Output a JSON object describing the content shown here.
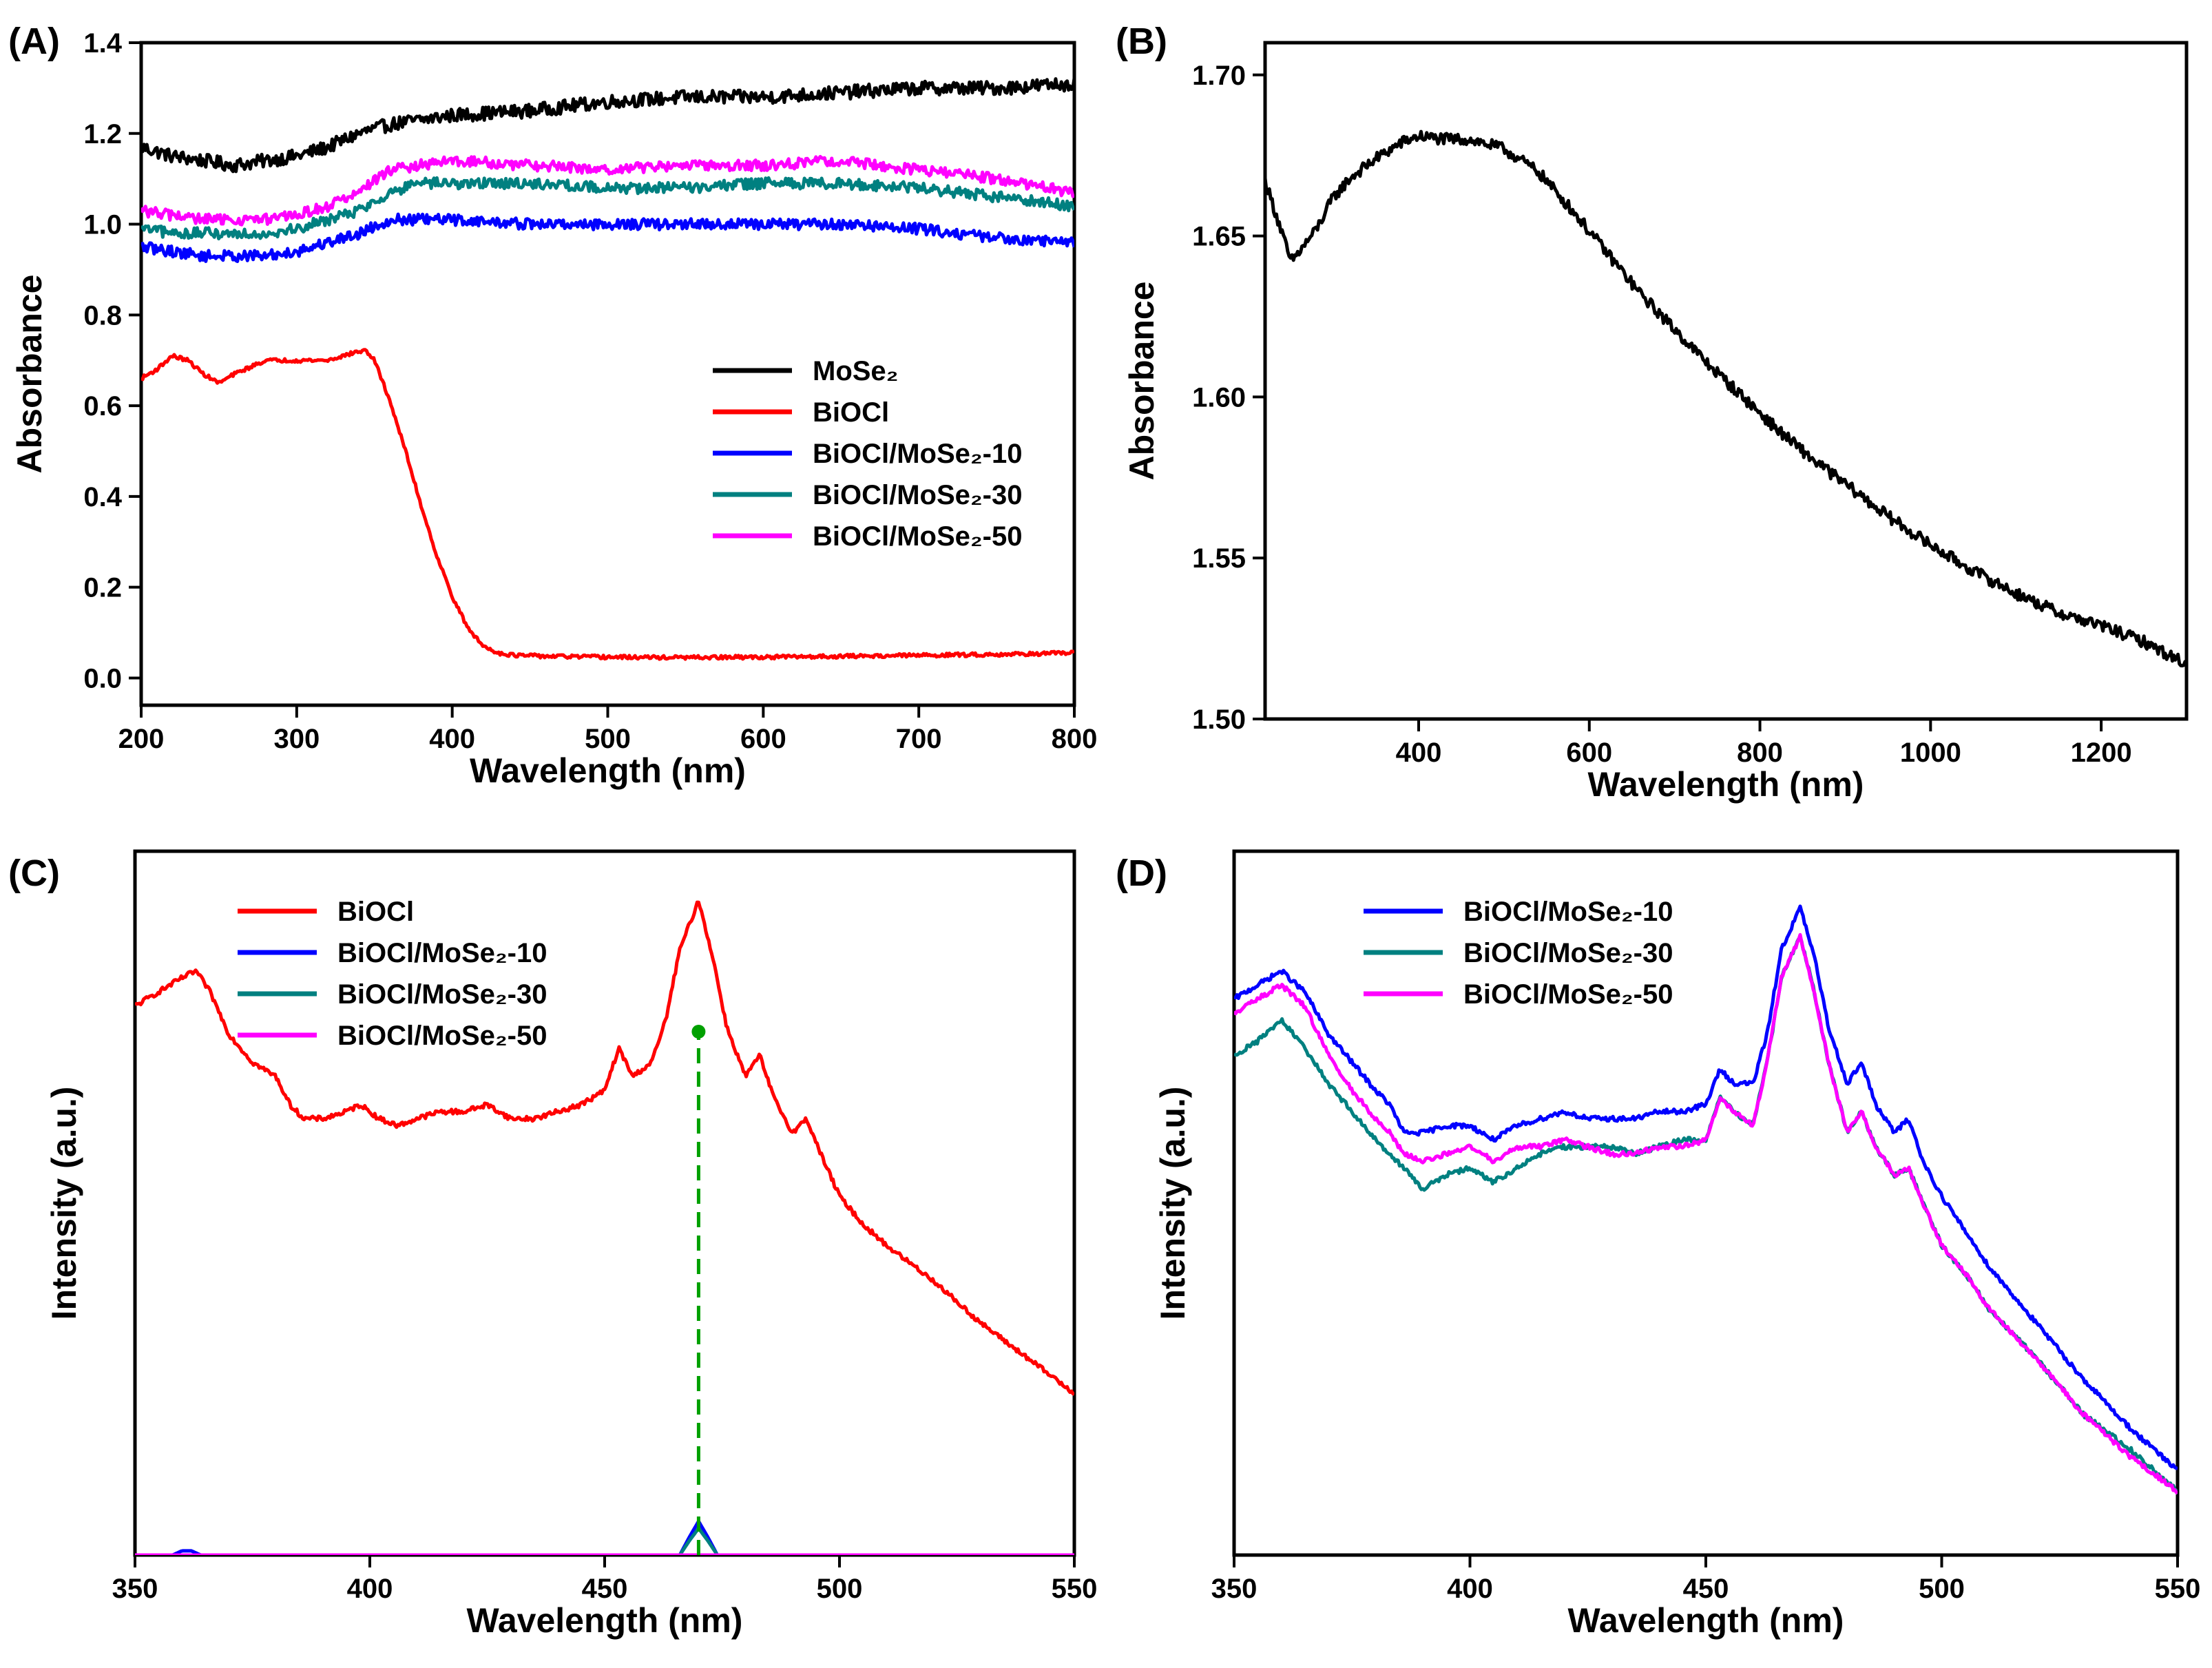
{
  "chart_data": [
    {
      "id": "A",
      "type": "line",
      "panel_label": "(A)",
      "xlabel": "Wavelength (nm)",
      "ylabel": "Absorbance",
      "xlim": [
        200,
        800
      ],
      "ylim": [
        -0.06,
        1.4
      ],
      "xticks": [
        200,
        300,
        400,
        500,
        600,
        700,
        800
      ],
      "xtick_labels": [
        "200",
        "300",
        "400",
        "500",
        "600",
        "700",
        "800"
      ],
      "yticks": [
        0.0,
        0.2,
        0.4,
        0.6,
        0.8,
        1.0,
        1.2,
        1.4
      ],
      "ytick_labels": [
        "0.0",
        "0.2",
        "0.4",
        "0.6",
        "0.8",
        "1.0",
        "1.2",
        "1.4"
      ],
      "legend_position": "center-right",
      "series": [
        {
          "name": "MoSe₂",
          "color": "#000000",
          "noise": 0.015,
          "x": [
            200,
            220,
            240,
            260,
            280,
            300,
            320,
            340,
            360,
            380,
            400,
            450,
            500,
            550,
            600,
            650,
            700,
            750,
            800
          ],
          "y": [
            1.17,
            1.15,
            1.14,
            1.13,
            1.14,
            1.15,
            1.17,
            1.2,
            1.22,
            1.23,
            1.24,
            1.25,
            1.27,
            1.28,
            1.28,
            1.29,
            1.3,
            1.3,
            1.31
          ]
        },
        {
          "name": "BiOCl",
          "color": "#ff0000",
          "noise": 0.004,
          "x": [
            200,
            210,
            220,
            230,
            240,
            250,
            260,
            280,
            300,
            320,
            340,
            345,
            350,
            360,
            370,
            380,
            390,
            400,
            410,
            420,
            430,
            440,
            460,
            500,
            550,
            600,
            650,
            700,
            750,
            800
          ],
          "y": [
            0.66,
            0.68,
            0.71,
            0.7,
            0.67,
            0.65,
            0.67,
            0.7,
            0.7,
            0.7,
            0.72,
            0.72,
            0.7,
            0.61,
            0.5,
            0.38,
            0.27,
            0.18,
            0.11,
            0.07,
            0.055,
            0.05,
            0.048,
            0.046,
            0.045,
            0.046,
            0.048,
            0.05,
            0.052,
            0.055
          ]
        },
        {
          "name": "BiOCl/MoSe₂-10",
          "color": "#0000ff",
          "noise": 0.012,
          "x": [
            200,
            220,
            240,
            260,
            280,
            300,
            320,
            340,
            360,
            380,
            400,
            450,
            500,
            550,
            600,
            650,
            700,
            750,
            800
          ],
          "y": [
            0.95,
            0.94,
            0.93,
            0.93,
            0.93,
            0.94,
            0.96,
            0.98,
            1.01,
            1.01,
            1.01,
            1.0,
            1.0,
            1.0,
            1.0,
            1.0,
            0.99,
            0.97,
            0.96
          ]
        },
        {
          "name": "BiOCl/MoSe₂-30",
          "color": "#008080",
          "noise": 0.012,
          "x": [
            200,
            220,
            240,
            260,
            280,
            300,
            320,
            340,
            360,
            380,
            400,
            450,
            500,
            550,
            600,
            650,
            700,
            750,
            800
          ],
          "y": [
            0.99,
            0.98,
            0.98,
            0.98,
            0.98,
            0.99,
            1.01,
            1.03,
            1.07,
            1.09,
            1.09,
            1.09,
            1.08,
            1.08,
            1.09,
            1.09,
            1.08,
            1.06,
            1.04
          ]
        },
        {
          "name": "BiOCl/MoSe₂-50",
          "color": "#ff00ff",
          "noise": 0.012,
          "x": [
            200,
            220,
            240,
            260,
            280,
            300,
            320,
            340,
            360,
            380,
            400,
            450,
            500,
            550,
            600,
            650,
            700,
            750,
            800
          ],
          "y": [
            1.03,
            1.02,
            1.01,
            1.01,
            1.01,
            1.02,
            1.04,
            1.07,
            1.12,
            1.13,
            1.14,
            1.13,
            1.12,
            1.13,
            1.13,
            1.14,
            1.12,
            1.1,
            1.07
          ]
        }
      ]
    },
    {
      "id": "B",
      "type": "line",
      "panel_label": "(B)",
      "xlabel": "Wavelength (nm)",
      "ylabel": "Absorbance",
      "xlim": [
        220,
        1300
      ],
      "ylim": [
        1.5,
        1.71
      ],
      "xticks": [
        400,
        600,
        800,
        1000,
        1200
      ],
      "xtick_labels": [
        "400",
        "600",
        "800",
        "1000",
        "1200"
      ],
      "yticks": [
        1.5,
        1.55,
        1.6,
        1.65,
        1.7
      ],
      "ytick_labels": [
        "1.50",
        "1.55",
        "1.60",
        "1.65",
        "1.70"
      ],
      "series": [
        {
          "name": "MoSe₂",
          "color": "#000000",
          "noise": 0.0018,
          "x": [
            220,
            235,
            250,
            260,
            280,
            300,
            320,
            350,
            380,
            400,
            430,
            460,
            500,
            540,
            580,
            620,
            660,
            700,
            740,
            780,
            820,
            860,
            900,
            950,
            1000,
            1050,
            1100,
            1150,
            1200,
            1250,
            1300
          ],
          "y": [
            1.667,
            1.655,
            1.642,
            1.645,
            1.652,
            1.662,
            1.668,
            1.674,
            1.679,
            1.681,
            1.68,
            1.68,
            1.677,
            1.67,
            1.658,
            1.645,
            1.632,
            1.621,
            1.61,
            1.6,
            1.59,
            1.581,
            1.573,
            1.563,
            1.554,
            1.546,
            1.539,
            1.533,
            1.529,
            1.524,
            1.517
          ]
        }
      ]
    },
    {
      "id": "C",
      "type": "line",
      "panel_label": "(C)",
      "xlabel": "Wavelength (nm)",
      "ylabel": "Intensity (a.u.)",
      "xlim": [
        350,
        550
      ],
      "ylim": [
        0,
        100
      ],
      "xticks": [
        350,
        400,
        450,
        500,
        550
      ],
      "xtick_labels": [
        "350",
        "400",
        "450",
        "500",
        "550"
      ],
      "legend_position": "upper-left",
      "marker_x": 470,
      "marker_color": "#00a000",
      "series": [
        {
          "name": "BiOCl",
          "color": "#ff0000",
          "noise": 0.35,
          "x": [
            350,
            355,
            360,
            363,
            366,
            370,
            375,
            380,
            383,
            386,
            390,
            395,
            398,
            402,
            406,
            410,
            415,
            420,
            425,
            430,
            435,
            440,
            445,
            450,
            453,
            456,
            460,
            463,
            466,
            470,
            473,
            476,
            480,
            483,
            486,
            490,
            493,
            496,
            500,
            505,
            510,
            520,
            530,
            540,
            550
          ],
          "y": [
            78,
            80,
            82,
            83,
            80,
            74,
            70,
            68,
            64,
            62,
            62,
            63,
            64,
            62,
            61,
            62,
            63,
            63,
            64,
            62,
            62,
            63,
            64,
            66,
            72,
            68,
            70,
            76,
            86,
            93,
            85,
            75,
            68,
            71,
            65,
            60,
            62,
            57,
            51,
            47,
            44,
            39,
            33,
            28,
            23
          ]
        },
        {
          "name": "BiOCl/MoSe₂-10",
          "color": "#0000ff",
          "noise": 0,
          "x": [
            350,
            358,
            360,
            362,
            364,
            440,
            466,
            468,
            470,
            472,
            474,
            550
          ],
          "y": [
            0,
            0,
            0.6,
            0.6,
            0,
            0,
            0,
            2.5,
            4.8,
            2.5,
            0,
            0
          ]
        },
        {
          "name": "BiOCl/MoSe₂-30",
          "color": "#008080",
          "noise": 0,
          "x": [
            350,
            466,
            468,
            470,
            472,
            474,
            550
          ],
          "y": [
            0,
            0,
            2,
            3.8,
            2,
            0,
            0
          ]
        },
        {
          "name": "BiOCl/MoSe₂-50",
          "color": "#ff00ff",
          "noise": 0,
          "x": [
            350,
            550
          ],
          "y": [
            0,
            0
          ]
        }
      ]
    },
    {
      "id": "D",
      "type": "line",
      "panel_label": "(D)",
      "xlabel": "Wavelength (nm)",
      "ylabel": "Intensity (a.u.)",
      "xlim": [
        350,
        550
      ],
      "ylim": [
        0,
        100
      ],
      "xticks": [
        350,
        400,
        450,
        500,
        550
      ],
      "xtick_labels": [
        "350",
        "400",
        "450",
        "500",
        "550"
      ],
      "legend_position": "upper-left",
      "series": [
        {
          "name": "BiOCl/MoSe₂-10",
          "color": "#0000ff",
          "noise": 0.35,
          "x": [
            350,
            355,
            360,
            365,
            370,
            375,
            380,
            383,
            386,
            390,
            395,
            400,
            405,
            410,
            415,
            420,
            425,
            430,
            435,
            440,
            445,
            450,
            453,
            456,
            460,
            463,
            466,
            470,
            473,
            476,
            480,
            483,
            486,
            490,
            493,
            496,
            500,
            505,
            510,
            520,
            530,
            540,
            550
          ],
          "y": [
            79,
            81,
            83,
            80,
            74,
            70,
            66,
            64,
            60,
            60,
            61,
            61,
            59,
            61,
            62,
            63,
            62,
            62,
            62,
            63,
            63,
            64,
            69,
            67,
            67,
            74,
            86,
            92,
            85,
            75,
            67,
            70,
            64,
            60,
            62,
            56,
            51,
            46,
            41,
            33,
            25,
            18,
            12
          ]
        },
        {
          "name": "BiOCl/MoSe₂-30",
          "color": "#008080",
          "noise": 0.35,
          "x": [
            350,
            355,
            360,
            365,
            370,
            375,
            380,
            383,
            386,
            390,
            395,
            400,
            405,
            410,
            415,
            420,
            425,
            430,
            435,
            440,
            445,
            450,
            453,
            456,
            460,
            463,
            466,
            470,
            473,
            476,
            480,
            483,
            486,
            490,
            493,
            496,
            500,
            505,
            510,
            520,
            530,
            540,
            550
          ],
          "y": [
            71,
            73,
            76,
            72,
            67,
            63,
            59,
            57,
            55,
            52,
            54,
            55,
            53,
            55,
            57,
            58,
            58,
            58,
            57,
            58,
            59,
            59,
            65,
            63,
            61,
            70,
            82,
            88,
            80,
            70,
            60,
            63,
            58,
            54,
            55,
            50,
            44,
            40,
            35,
            28,
            20,
            15,
            9
          ]
        },
        {
          "name": "BiOCl/MoSe₂-50",
          "color": "#ff00ff",
          "noise": 0.35,
          "x": [
            350,
            355,
            360,
            365,
            370,
            375,
            380,
            383,
            386,
            390,
            395,
            400,
            405,
            410,
            415,
            420,
            425,
            430,
            435,
            440,
            445,
            450,
            453,
            456,
            460,
            463,
            466,
            470,
            473,
            476,
            480,
            483,
            486,
            490,
            493,
            496,
            500,
            505,
            510,
            520,
            530,
            540,
            550
          ],
          "y": [
            77,
            79,
            81,
            78,
            71,
            66,
            62,
            60,
            57,
            56,
            57,
            58,
            56,
            58,
            58,
            59,
            58,
            57,
            57,
            58,
            58,
            59,
            65,
            63,
            61,
            70,
            82,
            88,
            80,
            70,
            60,
            63,
            58,
            54,
            55,
            50,
            44,
            40,
            35,
            28,
            20,
            14,
            9
          ]
        }
      ]
    }
  ]
}
